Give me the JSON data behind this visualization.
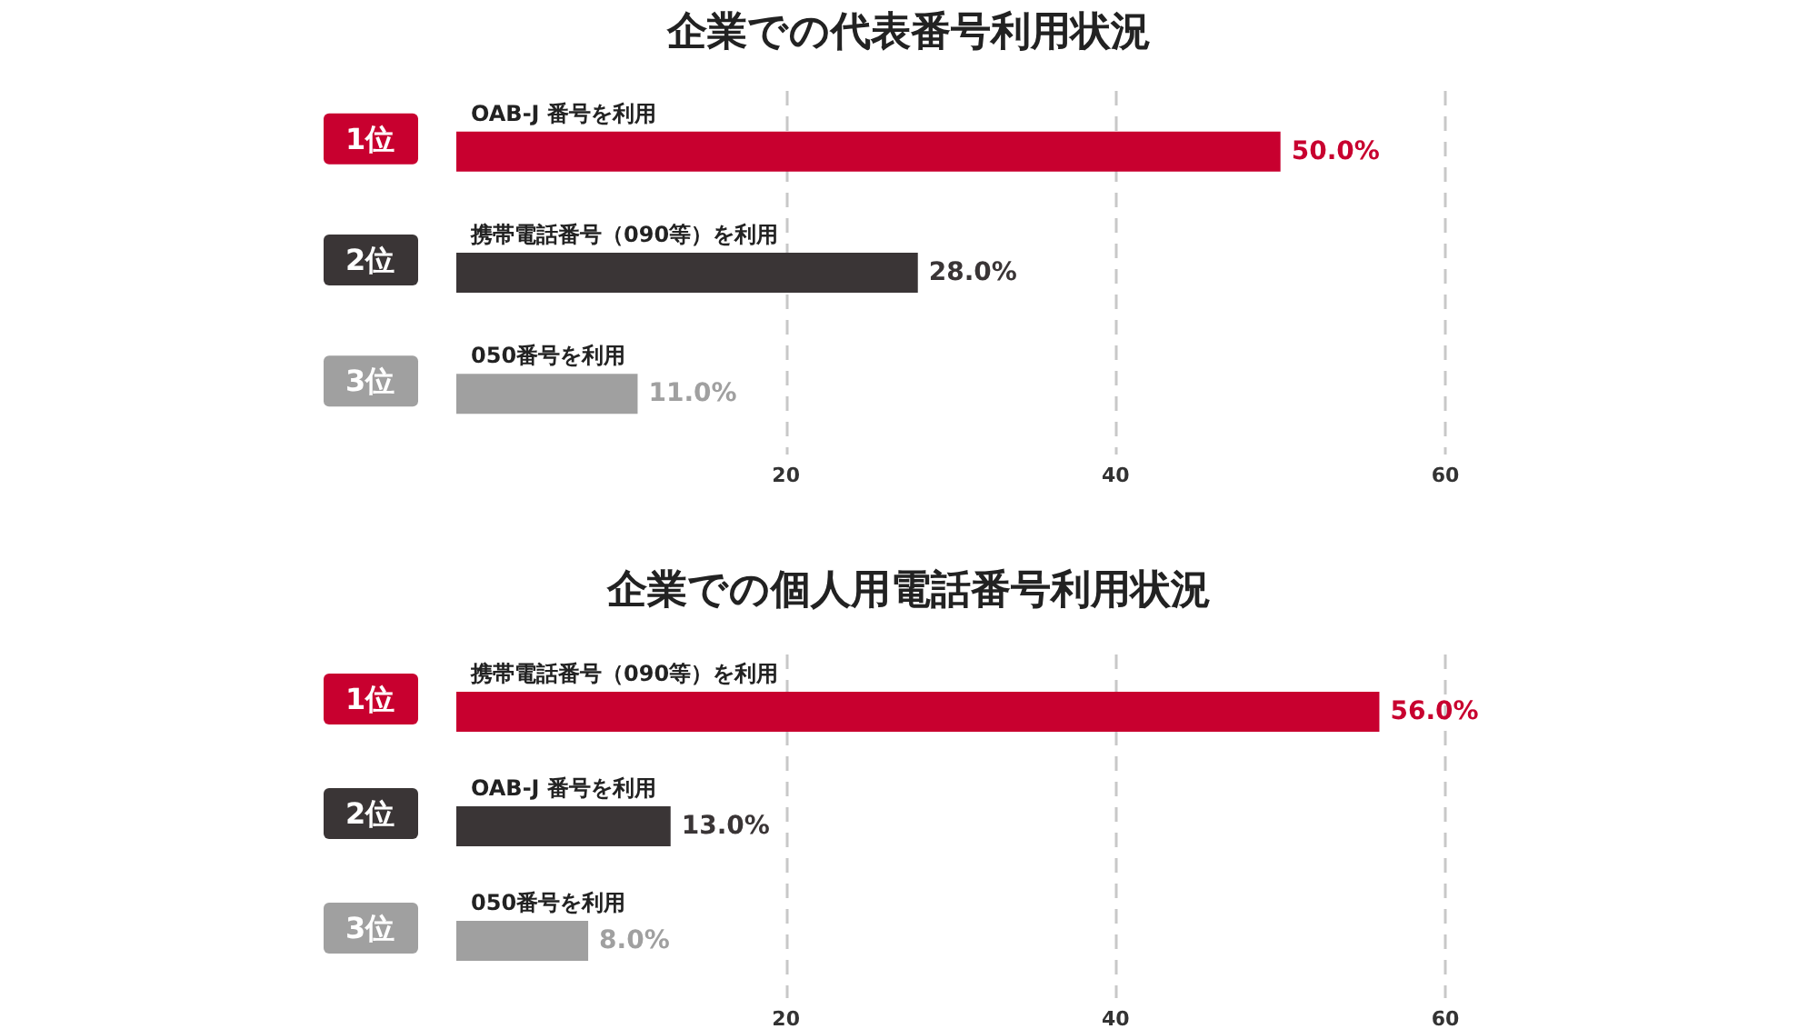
{
  "chart_data": [
    {
      "type": "bar",
      "orientation": "horizontal",
      "title": "企業での代表番号利用状況",
      "categories": [
        "OAB-J 番号を利用",
        "携帯電話番号（090等）を利用",
        "050番号を利用"
      ],
      "values": [
        50,
        28,
        11
      ],
      "colors": [
        "#c8002f",
        "#3a3536",
        "#a0a0a0"
      ],
      "value_labels": [
        "50.0%",
        "28.0%",
        "11.0%"
      ],
      "annotations": [
        "1位",
        "2位",
        "3位"
      ],
      "xlim": [
        0,
        60
      ],
      "xticks": [
        20,
        40,
        60
      ],
      "grid": "x"
    },
    {
      "type": "bar",
      "orientation": "horizontal",
      "title": "企業での個人用電話番号利用状況",
      "categories": [
        "携帯電話番号（090等）を利用",
        "OAB-J 番号を利用",
        "050番号を利用"
      ],
      "values": [
        56,
        13,
        8
      ],
      "colors": [
        "#c8002f",
        "#3a3536",
        "#a0a0a0"
      ],
      "value_labels": [
        "56.0%",
        "13.0%",
        "8.0%"
      ],
      "annotations": [
        "1位",
        "2位",
        "3位"
      ],
      "xlim": [
        0,
        60
      ],
      "xticks": [
        20,
        40,
        60
      ],
      "grid": "x"
    }
  ]
}
